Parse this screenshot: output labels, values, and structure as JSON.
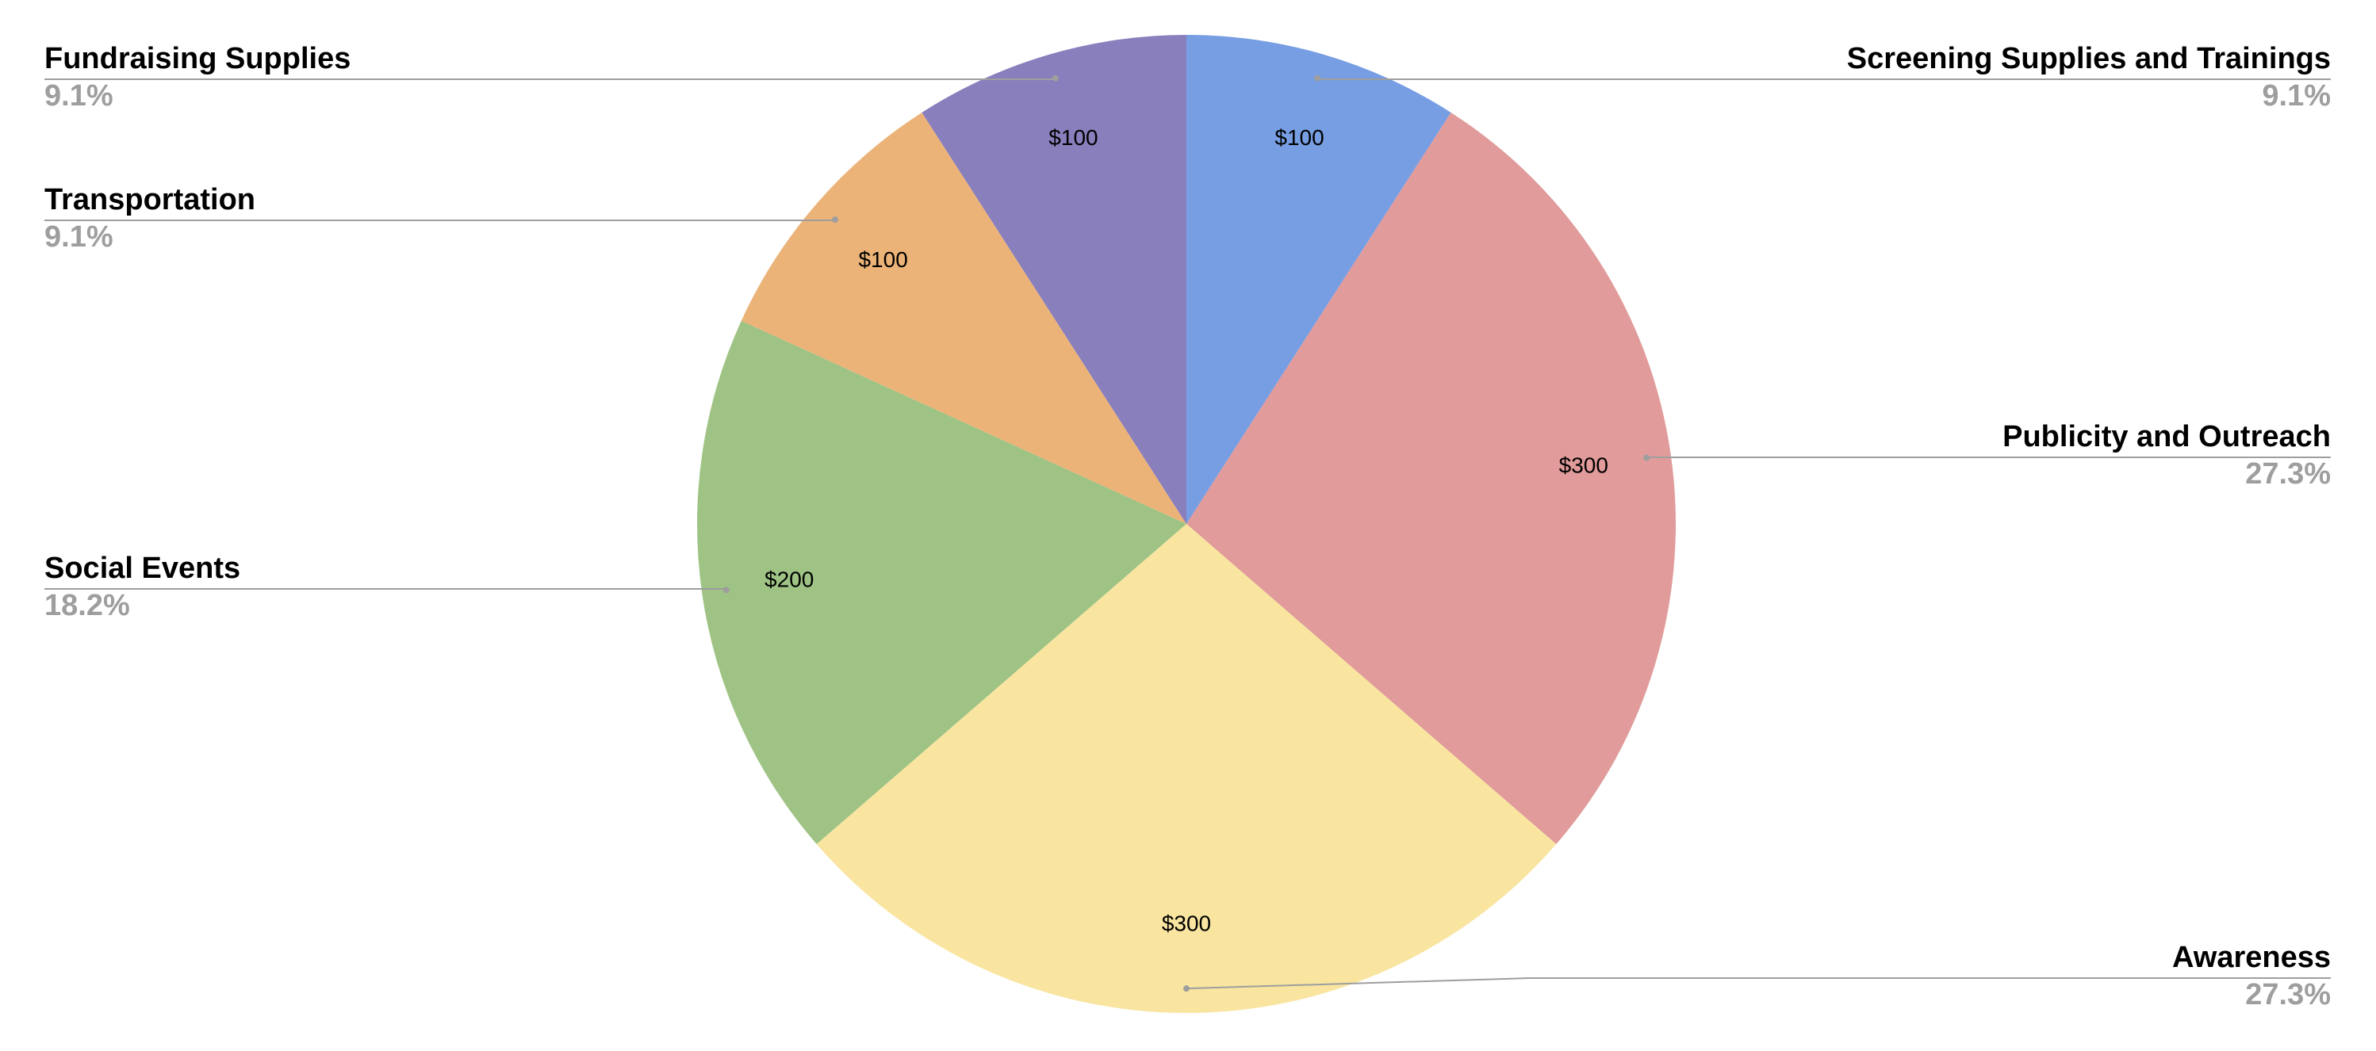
{
  "chart_data": {
    "type": "pie",
    "categories": [
      "Screening Supplies and Trainings",
      "Publicity and Outreach",
      "Awareness",
      "Social Events",
      "Transportation",
      "Fundraising Supplies"
    ],
    "values": [
      100,
      300,
      300,
      200,
      100,
      100
    ],
    "value_labels": [
      "$100",
      "$300",
      "$300",
      "$200",
      "$100",
      "$100"
    ],
    "percent_labels": [
      "9.1%",
      "27.3%",
      "27.3%",
      "18.2%",
      "9.1%",
      "9.1%"
    ],
    "colors": [
      "#779ee3",
      "#e09b9a",
      "#f9e5a0",
      "#9fc385",
      "#ebb378",
      "#8a7fbd"
    ]
  }
}
